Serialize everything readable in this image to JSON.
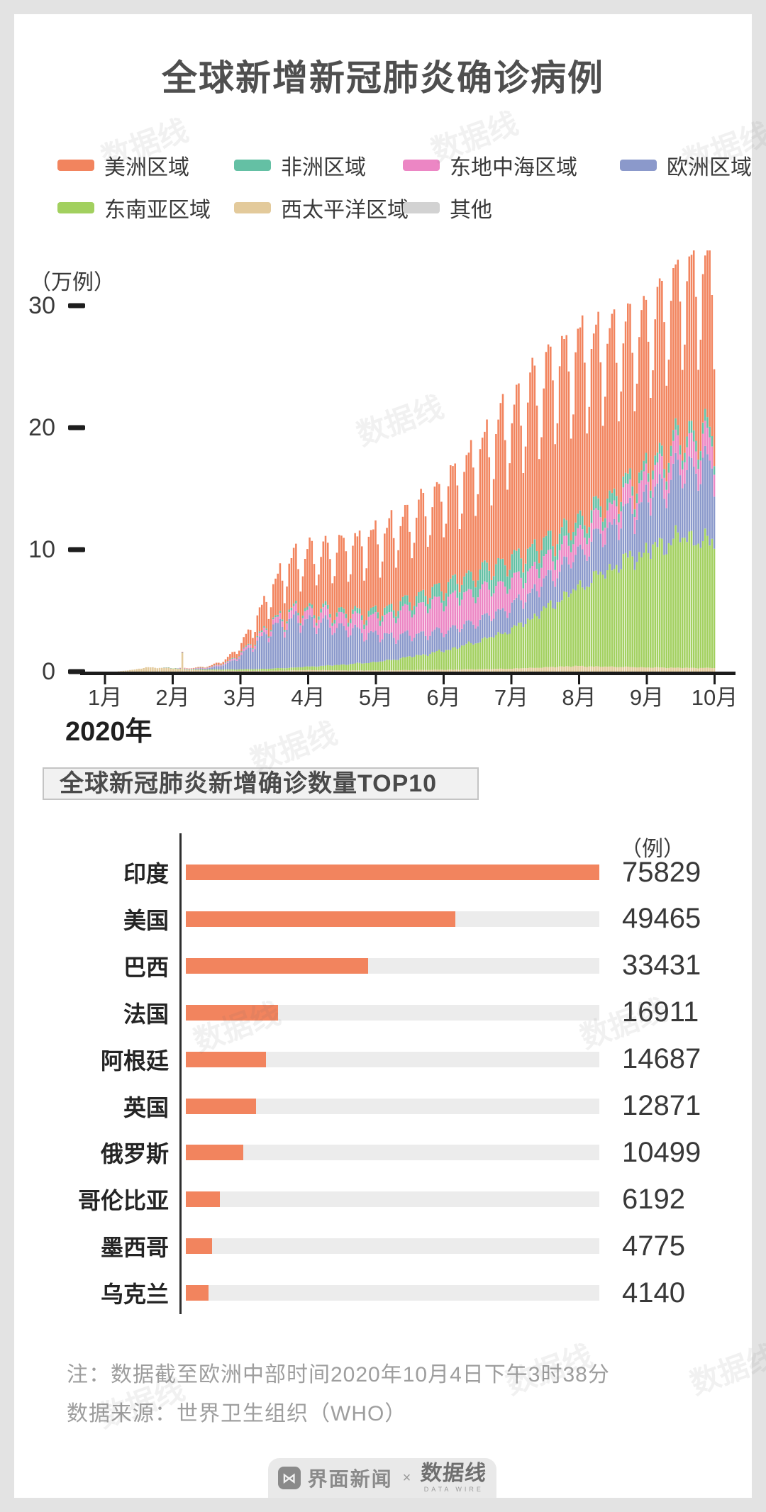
{
  "title": "全球新增新冠肺炎确诊病例",
  "legend": [
    {
      "label": "美洲区域",
      "color": "#F2845E"
    },
    {
      "label": "非洲区域",
      "color": "#64C0A4"
    },
    {
      "label": "东地中海区域",
      "color": "#EC86C4"
    },
    {
      "label": "欧洲区域",
      "color": "#8B99CB"
    },
    {
      "label": "东南亚区域",
      "color": "#A2D05F"
    },
    {
      "label": "西太平洋区域",
      "color": "#E3CA9B"
    },
    {
      "label": "其他",
      "color": "#D2D2D2"
    }
  ],
  "chart_data": [
    {
      "type": "stacked-bar",
      "title": "全球新增新冠肺炎确诊病例",
      "unit": "（万例）",
      "y_ticks": [
        30,
        20,
        10,
        0
      ],
      "ylim": [
        0,
        35
      ],
      "x_tick_labels": [
        "1月",
        "2月",
        "3月",
        "4月",
        "5月",
        "6月",
        "7月",
        "8月",
        "9月",
        "10月"
      ],
      "x_axis_note": "2020年",
      "start_date": "2020-01-01",
      "end_date": "2020-10-04",
      "sample_interval_days": 7,
      "stack_order": [
        "西太平洋区域",
        "东南亚区域",
        "欧洲区域",
        "东地中海区域",
        "非洲区域",
        "美洲区域",
        "其他"
      ],
      "series": [
        {
          "name": "美洲区域",
          "color": "#F2845E",
          "weekly_values": [
            0,
            0,
            0,
            0,
            0,
            0.01,
            0.02,
            0.05,
            0.1,
            0.3,
            0.8,
            1.8,
            3.0,
            4.0,
            4.5,
            4.8,
            5.2,
            5.6,
            6.0,
            6.3,
            6.6,
            7.0,
            7.5,
            8.2,
            9.0,
            10.0,
            11.0,
            12.0,
            13.0,
            13.8,
            14.2,
            14.0,
            13.5,
            12.8,
            12.2,
            12.0,
            12.1,
            12.4,
            12.5,
            12.8
          ]
        },
        {
          "name": "非洲区域",
          "color": "#64C0A4",
          "weekly_values": [
            0,
            0,
            0,
            0,
            0,
            0,
            0.01,
            0.02,
            0.03,
            0.05,
            0.08,
            0.1,
            0.15,
            0.2,
            0.25,
            0.3,
            0.35,
            0.4,
            0.5,
            0.6,
            0.7,
            0.85,
            1.0,
            1.2,
            1.4,
            1.6,
            1.75,
            1.8,
            1.7,
            1.5,
            1.3,
            1.1,
            1.0,
            0.9,
            0.85,
            0.8,
            0.8,
            0.85,
            0.9,
            0.9
          ]
        },
        {
          "name": "东地中海区域",
          "color": "#EC86C4",
          "weekly_values": [
            0,
            0,
            0,
            0,
            0,
            0.01,
            0.02,
            0.03,
            0.05,
            0.1,
            0.2,
            0.3,
            0.45,
            0.6,
            0.7,
            0.8,
            0.9,
            1.1,
            1.3,
            1.6,
            2.0,
            2.3,
            2.5,
            2.6,
            2.5,
            2.4,
            2.2,
            2.0,
            1.8,
            1.7,
            1.6,
            1.55,
            1.5,
            1.5,
            1.55,
            1.6,
            1.7,
            1.8,
            1.9,
            2.0
          ]
        },
        {
          "name": "欧洲区域",
          "color": "#8B99CB",
          "weekly_values": [
            0,
            0,
            0,
            0,
            0.01,
            0.02,
            0.03,
            0.05,
            0.15,
            0.5,
            1.3,
            2.5,
            3.5,
            4.0,
            3.9,
            3.6,
            3.2,
            2.8,
            2.4,
            2.1,
            1.9,
            1.8,
            1.7,
            1.7,
            1.7,
            1.8,
            1.9,
            2.0,
            2.2,
            2.4,
            2.6,
            2.9,
            3.2,
            3.5,
            3.9,
            4.3,
            4.8,
            5.4,
            5.9,
            6.4
          ]
        },
        {
          "name": "东南亚区域",
          "color": "#A2D05F",
          "weekly_values": [
            0,
            0,
            0,
            0,
            0.01,
            0.02,
            0.03,
            0.05,
            0.08,
            0.1,
            0.12,
            0.15,
            0.18,
            0.22,
            0.28,
            0.35,
            0.45,
            0.55,
            0.65,
            0.8,
            1.0,
            1.2,
            1.4,
            1.7,
            2.0,
            2.4,
            2.8,
            3.3,
            4.0,
            4.8,
            5.6,
            6.4,
            7.2,
            8.0,
            8.7,
            9.3,
            9.9,
            10.5,
            10.8,
            10.3
          ]
        },
        {
          "name": "西太平洋区域",
          "color": "#E3CA9B",
          "weekly_values": [
            0,
            0,
            0,
            0.15,
            0.35,
            0.3,
            0.2,
            0.12,
            0.1,
            0.08,
            0.07,
            0.07,
            0.08,
            0.1,
            0.12,
            0.12,
            0.1,
            0.1,
            0.1,
            0.1,
            0.12,
            0.13,
            0.15,
            0.15,
            0.18,
            0.2,
            0.22,
            0.25,
            0.3,
            0.35,
            0.42,
            0.45,
            0.42,
            0.4,
            0.38,
            0.35,
            0.33,
            0.32,
            0.3,
            0.3
          ]
        },
        {
          "name": "其他",
          "color": "#D2D2D2",
          "weekly_values": [
            0,
            0,
            0,
            0.01,
            0.01,
            0.01,
            0.01,
            0.01,
            0.01,
            0.01,
            0.01,
            0.01,
            0.01,
            0.01,
            0.01,
            0.01,
            0.01,
            0.01,
            0.01,
            0.01,
            0.01,
            0.01,
            0.01,
            0.01,
            0.01,
            0.01,
            0.01,
            0.01,
            0.01,
            0.01,
            0.01,
            0.01,
            0.01,
            0.01,
            0.01,
            0.01,
            0.01,
            0.01,
            0.01,
            0.01
          ]
        }
      ],
      "spike": {
        "series": "西太平洋区域",
        "day_index": 43,
        "extra": 1.3
      }
    },
    {
      "type": "bar",
      "title": "全球新冠肺炎新增确诊数量TOP10",
      "unit": "（例）",
      "categories": [
        "印度",
        "美国",
        "巴西",
        "法国",
        "阿根廷",
        "英国",
        "俄罗斯",
        "哥伦比亚",
        "墨西哥",
        "乌克兰"
      ],
      "values": [
        75829,
        49465,
        33431,
        16911,
        14687,
        12871,
        10499,
        6192,
        4775,
        4140
      ],
      "bar_color": "#F2845E",
      "track_color": "#ECECEC",
      "xlim": [
        0,
        75829
      ]
    }
  ],
  "notes": [
    "注：数据截至欧洲中部时间2020年10月4日下午3时38分",
    "数据来源：世界卫生组织（WHO）"
  ],
  "footer": {
    "jiemian": "界面新闻",
    "separator": "×",
    "datawire": "数据线",
    "datawire_sub": "DATA WIRE"
  },
  "watermark_text": "数据线"
}
